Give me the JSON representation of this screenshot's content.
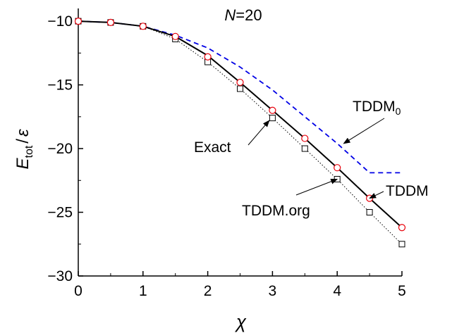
{
  "chart_data": {
    "type": "line",
    "title": "N=20",
    "title_parts": {
      "symbol": "N",
      "value": "=20"
    },
    "xlabel": "χ",
    "ylabel": "E_tot / ε",
    "ylabel_parts": {
      "main": "E",
      "sub": "tot",
      "slash": "/",
      "denom": "ε"
    },
    "xlim": [
      0,
      5
    ],
    "ylim": [
      -30,
      -9
    ],
    "x_ticks": [
      0,
      1,
      2,
      3,
      4,
      5
    ],
    "x_tick_labels": [
      "0",
      "1",
      "2",
      "3",
      "4",
      "5"
    ],
    "y_ticks": [
      -10,
      -15,
      -20,
      -25,
      -30
    ],
    "y_tick_labels": [
      "−10",
      "−15",
      "−20",
      "−25",
      "−30"
    ],
    "grid": false,
    "series": [
      {
        "name": "Exact",
        "style": "solid",
        "color": "#000000",
        "x": [
          0,
          0.5,
          1,
          1.5,
          2,
          2.5,
          3,
          3.5,
          4,
          4.5,
          5
        ],
        "y": [
          -10.0,
          -10.1,
          -10.4,
          -11.2,
          -12.7,
          -14.8,
          -17.0,
          -19.2,
          -21.5,
          -23.9,
          -26.2
        ]
      },
      {
        "name": "TDDM",
        "marker": "circle",
        "color": "#e8000b",
        "x": [
          0,
          0.5,
          1,
          1.5,
          2,
          2.5,
          3,
          3.5,
          4,
          4.5,
          5
        ],
        "y": [
          -10.0,
          -10.1,
          -10.4,
          -11.2,
          -12.8,
          -14.8,
          -17.0,
          -19.2,
          -21.5,
          -23.9,
          -26.2
        ]
      },
      {
        "name": "TDDM.org",
        "marker": "square",
        "style": "dotted",
        "color": "#000000",
        "x": [
          0,
          0.5,
          1,
          1.5,
          2,
          2.5,
          3,
          3.5,
          4,
          4.5,
          5
        ],
        "y": [
          -10.0,
          -10.1,
          -10.4,
          -11.4,
          -13.2,
          -15.3,
          -17.6,
          -20.0,
          -22.4,
          -25.0,
          -27.5
        ]
      },
      {
        "name": "TDDM0",
        "style": "dashed",
        "color": "#0000e6",
        "x": [
          0,
          0.5,
          1,
          1.5,
          2,
          2.5,
          3,
          3.5,
          4,
          4.5,
          5
        ],
        "y": [
          -10.0,
          -10.1,
          -10.4,
          -11.1,
          -12.1,
          -13.6,
          -15.4,
          -17.5,
          -19.6,
          -21.9,
          -21.9
        ]
      }
    ],
    "annotations": {
      "exact": {
        "text": "Exact",
        "arrow_to": [
          2.95,
          -17.8
        ]
      },
      "tddm": {
        "text": "TDDM",
        "arrow_to": [
          4.5,
          -23.9
        ]
      },
      "tddm_org": {
        "text": "TDDM.org",
        "arrow_to": [
          4.0,
          -22.4
        ]
      },
      "tddm0": {
        "main": "TDDM",
        "sub": "0",
        "arrow_to": [
          4.1,
          -19.6
        ]
      }
    }
  }
}
